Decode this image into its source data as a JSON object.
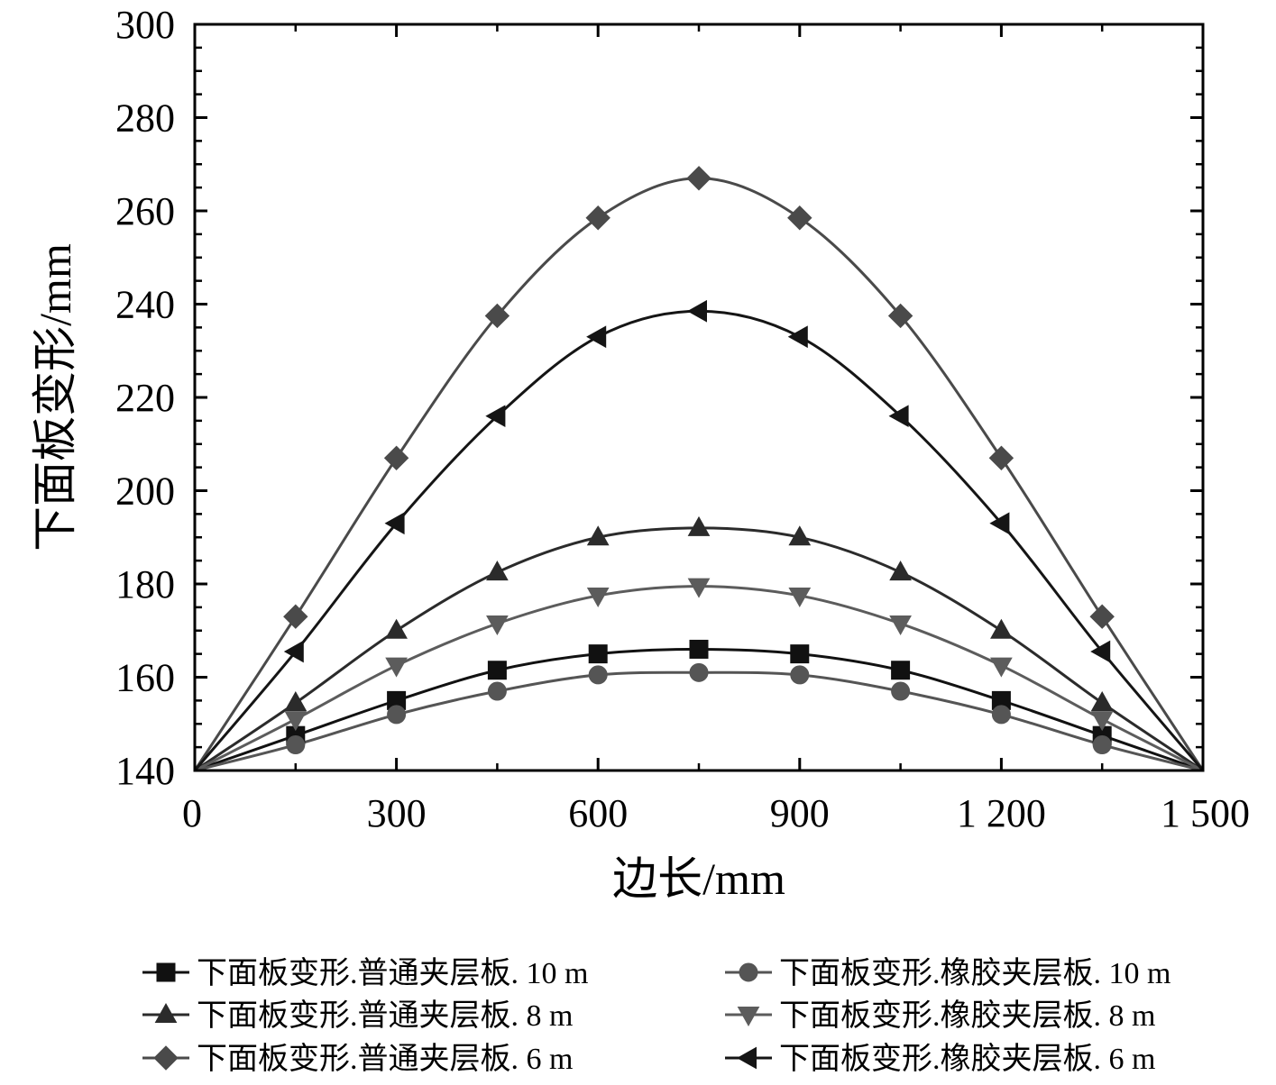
{
  "chart_data": {
    "type": "line",
    "xlabel": "边长/mm",
    "ylabel": "下面板变形/mm",
    "xlim": [
      0,
      1500
    ],
    "ylim": [
      140,
      300
    ],
    "x_ticks": [
      0,
      300,
      600,
      900,
      1200,
      1500
    ],
    "x_tick_labels": [
      "0",
      "300",
      "600",
      "900",
      "1 200",
      "1 500"
    ],
    "y_ticks": [
      140,
      160,
      180,
      200,
      220,
      240,
      260,
      280,
      300
    ],
    "y_tick_labels": [
      "140",
      "160",
      "180",
      "200",
      "220",
      "240",
      "260",
      "280",
      "300"
    ],
    "grid": false,
    "legend_position": "bottom",
    "x": [
      0,
      150,
      300,
      450,
      600,
      750,
      900,
      1050,
      1200,
      1350,
      1500
    ],
    "series": [
      {
        "name": "下面板变形.普通夹层板. 10 m",
        "marker": "square",
        "color": "#111111",
        "values": [
          140,
          147.5,
          155,
          161.5,
          165,
          166,
          165,
          161.5,
          155,
          147.5,
          140
        ]
      },
      {
        "name": "下面板变形.橡胶夹层板. 10 m",
        "marker": "circle",
        "color": "#555555",
        "values": [
          140,
          145.5,
          152,
          157,
          160.5,
          161,
          160.5,
          157,
          152,
          145.5,
          140
        ]
      },
      {
        "name": "下面板变形.普通夹层板. 8 m",
        "marker": "triangle-up",
        "color": "#2b2b2b",
        "values": [
          140,
          154.5,
          170,
          182.5,
          190,
          192,
          190,
          182.5,
          170,
          154.5,
          140
        ]
      },
      {
        "name": "下面板变形.橡胶夹层板. 8 m",
        "marker": "triangle-down",
        "color": "#5c5c5c",
        "values": [
          140,
          151,
          162.5,
          171.5,
          177.5,
          179.5,
          177.5,
          171.5,
          162.5,
          151,
          140
        ]
      },
      {
        "name": "下面板变形.普通夹层板. 6 m",
        "marker": "diamond",
        "color": "#4a4a4a",
        "values": [
          140,
          173,
          207,
          237.5,
          258.5,
          267,
          258.5,
          237.5,
          207,
          173,
          140
        ]
      },
      {
        "name": "下面板变形.橡胶夹层板. 6 m",
        "marker": "triangle-left",
        "color": "#151515",
        "values": [
          140,
          165.5,
          193,
          216,
          233,
          238.5,
          233,
          216,
          193,
          165.5,
          140
        ]
      }
    ]
  }
}
